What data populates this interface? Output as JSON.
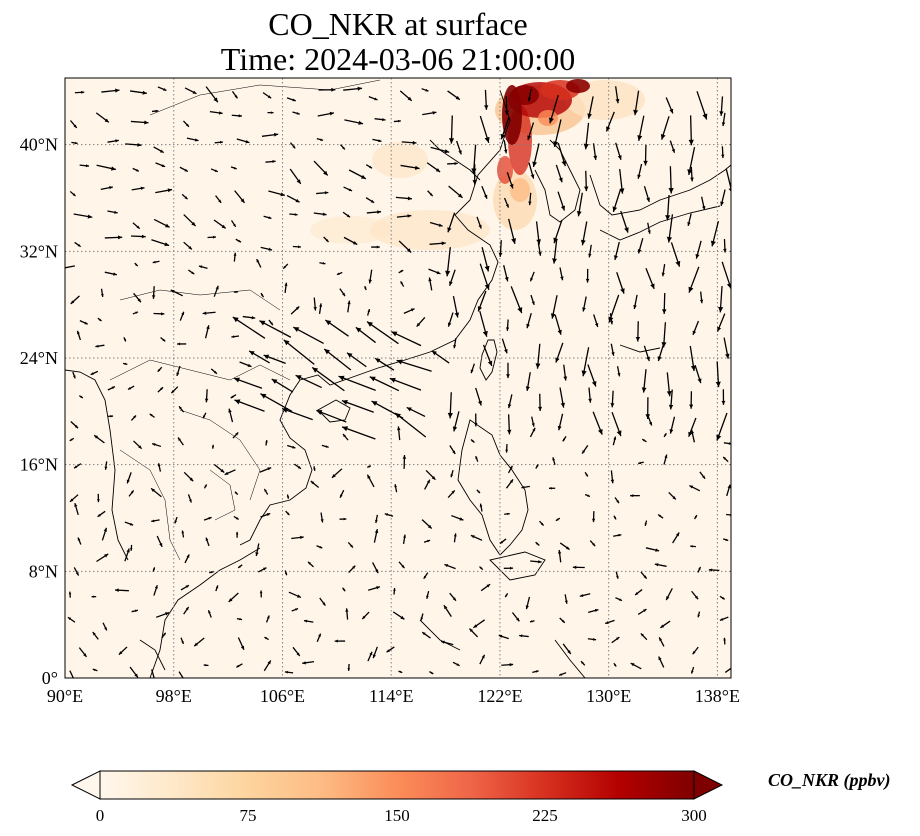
{
  "title": {
    "line1": "CO_NKR at surface",
    "line2": "Time: 2024-03-06 21:00:00"
  },
  "map": {
    "lon_range": [
      90,
      139
    ],
    "lat_range": [
      0,
      45
    ],
    "lon_ticks": [
      "90°E",
      "98°E",
      "106°E",
      "114°E",
      "122°E",
      "130°E",
      "138°E"
    ],
    "lat_ticks": [
      "0°",
      "8°N",
      "16°N",
      "24°N",
      "32°N",
      "40°N"
    ],
    "gridlines": "dotted gray",
    "background_color": "#fff5e9",
    "coastline_color": "#000000",
    "features": [
      "coastlines",
      "country borders",
      "wind vectors",
      "CO_NKR concentration field"
    ],
    "plume": {
      "description_color_high": "#8b0000",
      "location": "Korea / Yellow Sea / Northeast China",
      "peak_value_approx": 300
    }
  },
  "colorbar": {
    "label": "CO_NKR (ppbv)",
    "ticks": [
      "0",
      "75",
      "150",
      "225",
      "300"
    ],
    "min": 0,
    "max": 300,
    "colormap": "OrRd",
    "colors": [
      "#fff7ec",
      "#fee8c8",
      "#fdd49e",
      "#fdbb84",
      "#fc8d59",
      "#ef6548",
      "#d7301f",
      "#b30000",
      "#7f0000"
    ],
    "extend": "both"
  }
}
